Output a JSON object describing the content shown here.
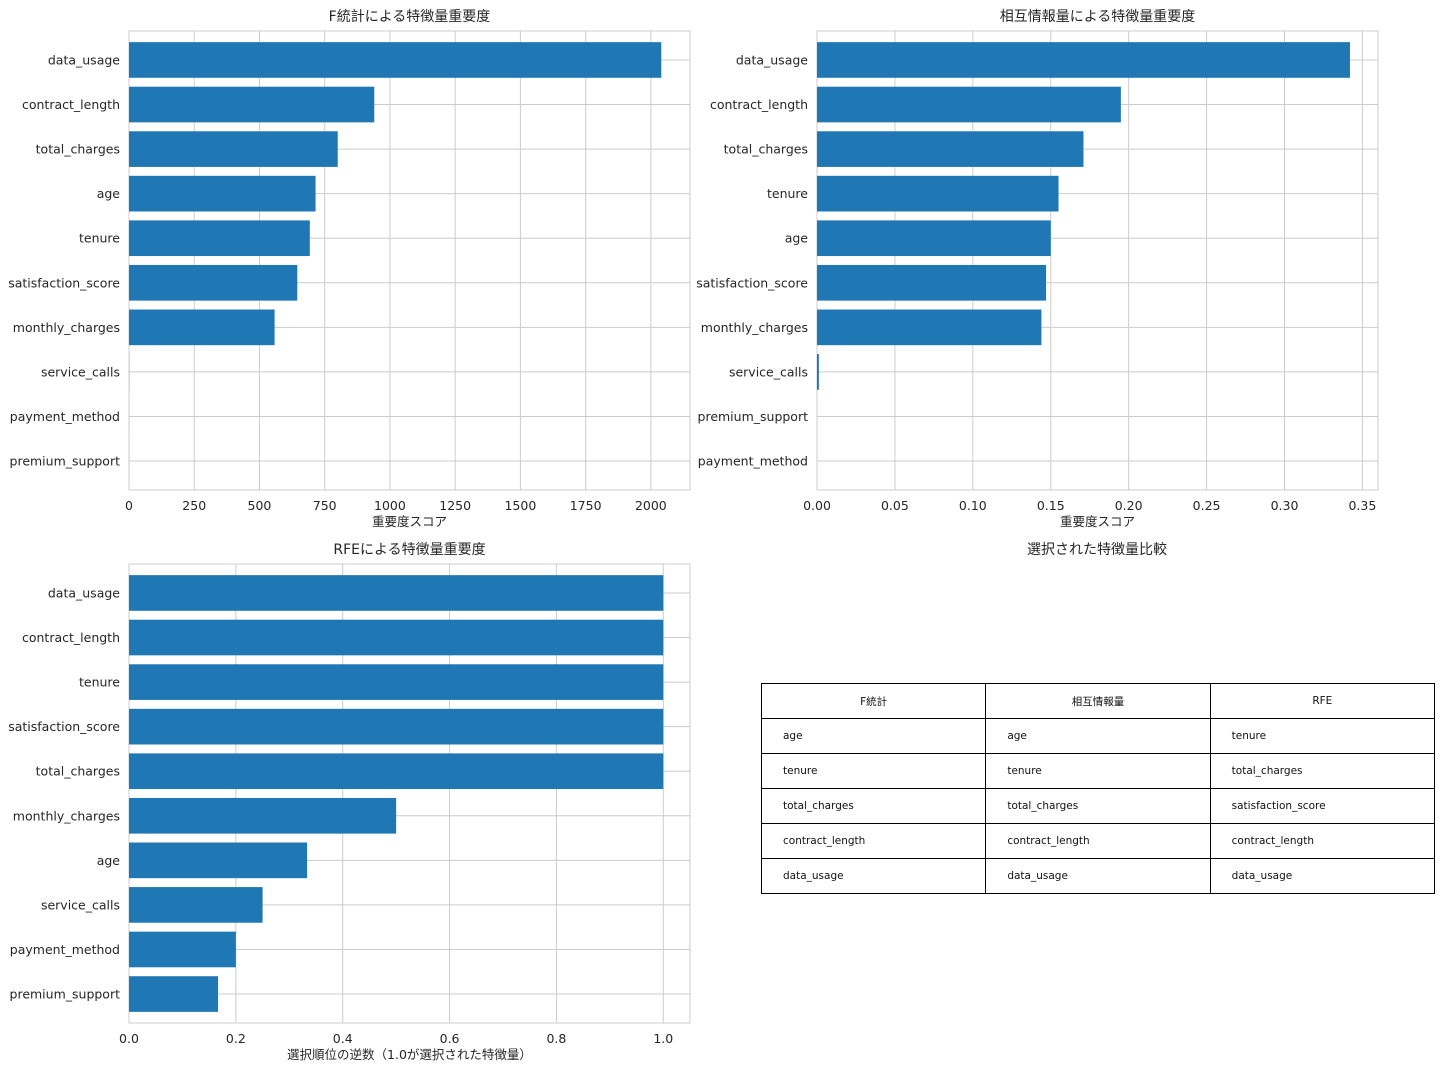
{
  "chart_data": [
    {
      "type": "bar",
      "orientation": "horizontal",
      "title": "F統計による特徴量重要度",
      "xlabel": "重要度スコア",
      "xlim": [
        0,
        2150
      ],
      "xticks": [
        0,
        250,
        500,
        750,
        1000,
        1250,
        1500,
        1750,
        2000
      ],
      "xtick_labels": [
        "0",
        "250",
        "500",
        "750",
        "1000",
        "1250",
        "1500",
        "1750",
        "2000"
      ],
      "categories": [
        "data_usage",
        "contract_length",
        "total_charges",
        "age",
        "tenure",
        "satisfaction_score",
        "monthly_charges",
        "service_calls",
        "payment_method",
        "premium_support"
      ],
      "values": [
        2040,
        940,
        800,
        715,
        693,
        645,
        558,
        0.5,
        0.2,
        0.1
      ],
      "color": "#1f77b4",
      "grid": true
    },
    {
      "type": "bar",
      "orientation": "horizontal",
      "title": "相互情報量による特徴量重要度",
      "xlabel": "重要度スコア",
      "xlim": [
        0,
        0.36
      ],
      "xticks": [
        0,
        0.05,
        0.1,
        0.15,
        0.2,
        0.25,
        0.3,
        0.35
      ],
      "xtick_labels": [
        "0.00",
        "0.05",
        "0.10",
        "0.15",
        "0.20",
        "0.25",
        "0.30",
        "0.35"
      ],
      "categories": [
        "data_usage",
        "contract_length",
        "total_charges",
        "tenure",
        "age",
        "satisfaction_score",
        "monthly_charges",
        "service_calls",
        "premium_support",
        "payment_method"
      ],
      "values": [
        0.342,
        0.195,
        0.171,
        0.155,
        0.15,
        0.147,
        0.144,
        0.0012,
        0,
        0
      ],
      "color": "#1f77b4",
      "grid": true
    },
    {
      "type": "bar",
      "orientation": "horizontal",
      "title": "RFEによる特徴量重要度",
      "xlabel": "選択順位の逆数（1.0が選択された特徴量）",
      "xlim": [
        0,
        1.05
      ],
      "xticks": [
        0,
        0.2,
        0.4,
        0.6,
        0.8,
        1.0
      ],
      "xtick_labels": [
        "0.0",
        "0.2",
        "0.4",
        "0.6",
        "0.8",
        "1.0"
      ],
      "categories": [
        "data_usage",
        "contract_length",
        "tenure",
        "satisfaction_score",
        "total_charges",
        "monthly_charges",
        "age",
        "service_calls",
        "payment_method",
        "premium_support"
      ],
      "values": [
        1.0,
        1.0,
        1.0,
        1.0,
        1.0,
        0.5,
        0.3333,
        0.25,
        0.2,
        0.1667
      ],
      "color": "#1f77b4",
      "grid": true
    },
    {
      "type": "table",
      "title": "選択された特徴量比較",
      "columns": [
        "F統計",
        "相互情報量",
        "RFE"
      ],
      "rows": [
        [
          "age",
          "age",
          "tenure"
        ],
        [
          "tenure",
          "tenure",
          "total_charges"
        ],
        [
          "total_charges",
          "total_charges",
          "satisfaction_score"
        ],
        [
          "contract_length",
          "contract_length",
          "contract_length"
        ],
        [
          "data_usage",
          "data_usage",
          "data_usage"
        ]
      ]
    }
  ]
}
